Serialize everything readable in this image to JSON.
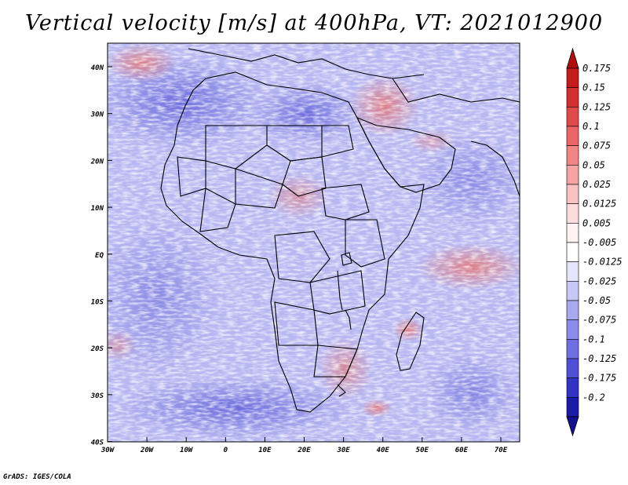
{
  "title": "Vertical velocity [m/s] at 400hPa, VT: 2021012900",
  "credit": "GrADS: IGES/COLA",
  "axes": {
    "lat_labels": [
      "40N",
      "30N",
      "20N",
      "10N",
      "EQ",
      "10S",
      "20S",
      "30S",
      "40S"
    ],
    "lon_labels": [
      "30W",
      "20W",
      "10W",
      "0",
      "10E",
      "20E",
      "30E",
      "40E",
      "50E",
      "60E",
      "70E"
    ]
  },
  "colorbar": {
    "levels": [
      {
        "label": "0.175",
        "color": "#c51b1b"
      },
      {
        "label": "0.15",
        "color": "#d32f2f"
      },
      {
        "label": "0.125",
        "color": "#e04a4a"
      },
      {
        "label": "0.1",
        "color": "#ea6666"
      },
      {
        "label": "0.075",
        "color": "#f08585"
      },
      {
        "label": "0.05",
        "color": "#f5a3a3"
      },
      {
        "label": "0.025",
        "color": "#f9c1c1"
      },
      {
        "label": "0.0125",
        "color": "#fcdcdc"
      },
      {
        "label": "0.005",
        "color": "#fff2f2"
      },
      {
        "label": "-0.005",
        "color": "#ffffff"
      },
      {
        "label": "-0.0125",
        "color": "#e4e4fb"
      },
      {
        "label": "-0.025",
        "color": "#c8c8f6"
      },
      {
        "label": "-0.05",
        "color": "#a9a9f0"
      },
      {
        "label": "-0.075",
        "color": "#8c8cea"
      },
      {
        "label": "-0.1",
        "color": "#6f6fe2"
      },
      {
        "label": "-0.125",
        "color": "#5050d6"
      },
      {
        "label": "-0.175",
        "color": "#3232c4"
      },
      {
        "label": "-0.2",
        "color": "#1a1aa8"
      }
    ],
    "top_arrow_color": "#b01010",
    "bottom_arrow_color": "#12128e"
  }
}
